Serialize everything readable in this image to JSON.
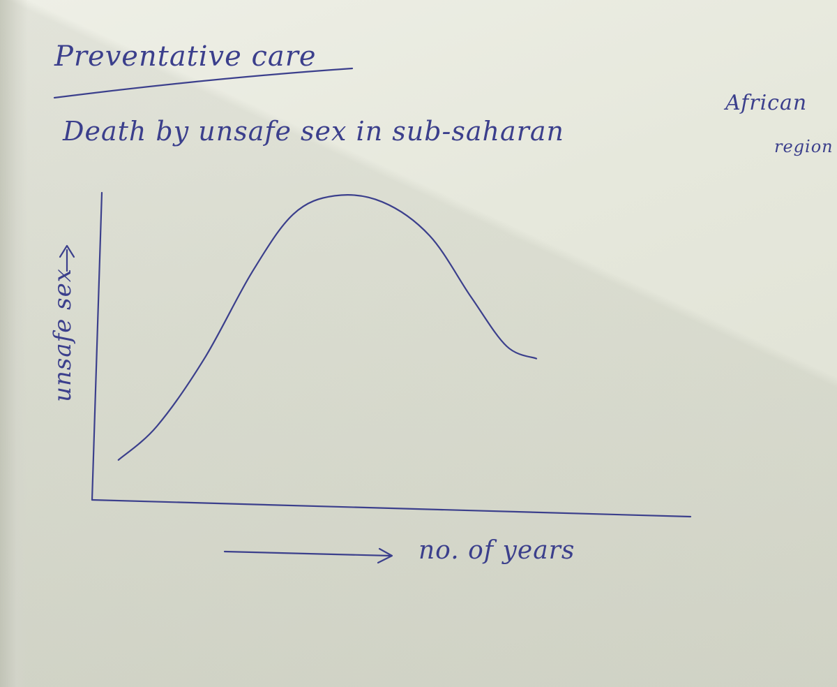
{
  "heading": {
    "title": "Preventative care",
    "subtitle_line1": "Death by unsafe sex in sub-saharan",
    "subtitle_line2": "African",
    "subtitle_line3": "region"
  },
  "colors": {
    "ink": "#3b3f8c",
    "paper": "#e6e7dc"
  },
  "chart_data": {
    "type": "line",
    "title": "",
    "xlabel": "no. of years",
    "ylabel": "unsafe sex",
    "grid": false,
    "legend": "none",
    "xlim": [
      0,
      10
    ],
    "ylim": [
      0,
      10
    ],
    "series": [
      {
        "values": [
          {
            "x": 0.35,
            "y": 1.3
          },
          {
            "x": 1.0,
            "y": 2.4
          },
          {
            "x": 1.8,
            "y": 4.6
          },
          {
            "x": 2.6,
            "y": 7.4
          },
          {
            "x": 3.3,
            "y": 9.3
          },
          {
            "x": 4.0,
            "y": 9.9
          },
          {
            "x": 4.8,
            "y": 9.7
          },
          {
            "x": 5.6,
            "y": 8.6
          },
          {
            "x": 6.3,
            "y": 6.6
          },
          {
            "x": 6.9,
            "y": 5.0
          },
          {
            "x": 7.4,
            "y": 4.6
          }
        ]
      }
    ]
  }
}
